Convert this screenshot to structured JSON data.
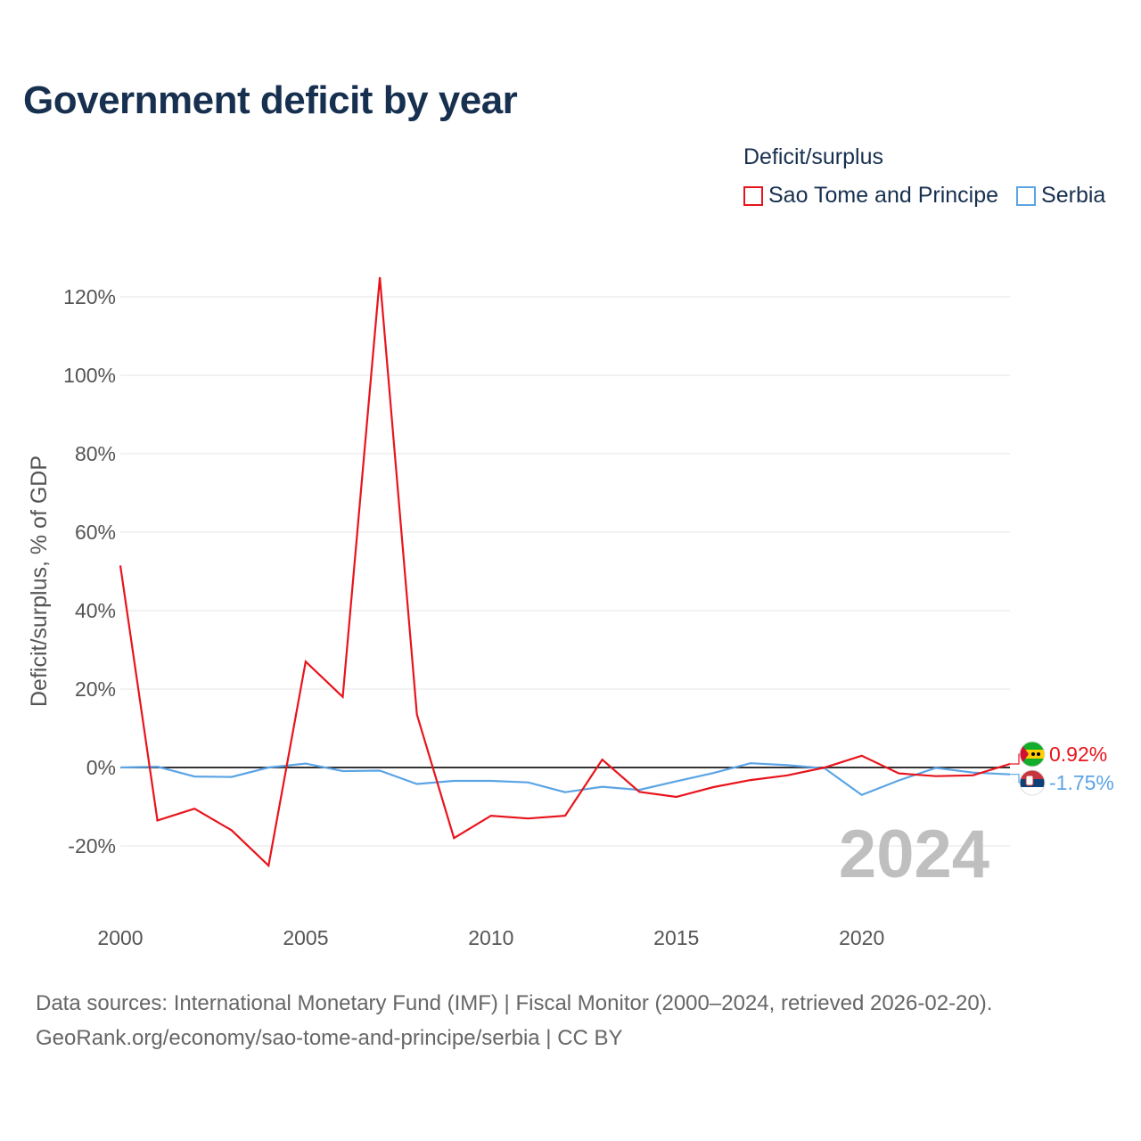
{
  "title": "Government deficit by year",
  "legend": {
    "title": "Deficit/surplus",
    "items": [
      {
        "name": "Sao Tome and Principe",
        "color": "#e8141c"
      },
      {
        "name": "Serbia",
        "color": "#5ba4e5"
      }
    ]
  },
  "current_year_label": "2024",
  "end_labels": [
    {
      "country": "Sao Tome and Principe",
      "text": "0.92%",
      "flag": "sao-tome-and-principe-flag-icon"
    },
    {
      "country": "Serbia",
      "text": "-1.75%",
      "flag": "serbia-flag-icon"
    }
  ],
  "source_line1": "Data sources: International Monetary Fund (IMF) | Fiscal Monitor (2000–2024, retrieved 2026-02-20).",
  "source_line2": "GeoRank.org/economy/sao-tome-and-principe/serbia | CC BY",
  "chart_data": {
    "type": "line",
    "title": "Government deficit by year",
    "xlabel": "",
    "ylabel": "Deficit/surplus, % of GDP",
    "x": [
      2000,
      2001,
      2002,
      2003,
      2004,
      2005,
      2006,
      2007,
      2008,
      2009,
      2010,
      2011,
      2012,
      2013,
      2014,
      2015,
      2016,
      2017,
      2018,
      2019,
      2020,
      2021,
      2022,
      2023,
      2024
    ],
    "xlim": [
      2000,
      2024
    ],
    "ylim": [
      -30,
      125
    ],
    "xticks": [
      2000,
      2005,
      2010,
      2015,
      2020
    ],
    "yticks": [
      -20,
      0,
      20,
      40,
      60,
      80,
      100,
      120
    ],
    "ytick_labels": [
      "-20%",
      "0%",
      "20%",
      "40%",
      "60%",
      "80%",
      "100%",
      "120%"
    ],
    "grid": true,
    "legend_position": "top-right",
    "series": [
      {
        "name": "Sao Tome and Principe",
        "color": "#e8141c",
        "values": [
          51.5,
          -13.5,
          -10.5,
          -16,
          -25,
          27,
          18,
          125,
          13.5,
          -18,
          -12.3,
          -13,
          -12.3,
          2,
          -6.2,
          -7.5,
          -5,
          -3.2,
          -2,
          0,
          3,
          -1.5,
          -2.2,
          -2,
          0.92
        ]
      },
      {
        "name": "Serbia",
        "color": "#5ba4e5",
        "values": [
          0,
          0.2,
          -2.3,
          -2.4,
          0,
          1,
          -0.9,
          -0.8,
          -4.2,
          -3.4,
          -3.4,
          -3.8,
          -6.3,
          -4.9,
          -5.7,
          -3.5,
          -1.4,
          1.1,
          0.6,
          -0.2,
          -7,
          -3.3,
          -0.1,
          -1.3,
          -1.75
        ]
      }
    ]
  }
}
